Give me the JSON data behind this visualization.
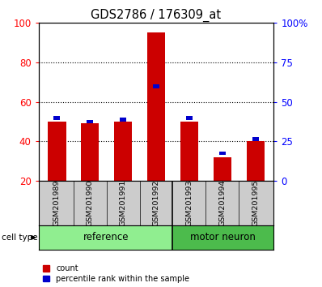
{
  "title": "GDS2786 / 176309_at",
  "samples": [
    "GSM201989",
    "GSM201990",
    "GSM201991",
    "GSM201992",
    "GSM201993",
    "GSM201994",
    "GSM201995"
  ],
  "count_values": [
    50,
    49,
    50,
    95,
    50,
    32,
    40
  ],
  "percentile_values": [
    52,
    50,
    51,
    68,
    52,
    34,
    41
  ],
  "y_min": 20,
  "y_max": 100,
  "y_ticks_left": [
    20,
    40,
    60,
    80,
    100
  ],
  "y_ticks_right": [
    0,
    25,
    50,
    75,
    100
  ],
  "bar_color": "#CC0000",
  "percentile_color": "#0000CC",
  "bar_width": 0.55,
  "percentile_bar_width": 0.2,
  "percentile_bar_height": 2.0,
  "label_bg_color": "#CCCCCC",
  "reference_color": "#90EE90",
  "motor_color": "#4CBB4C",
  "ref_count": 4,
  "motor_count": 3
}
